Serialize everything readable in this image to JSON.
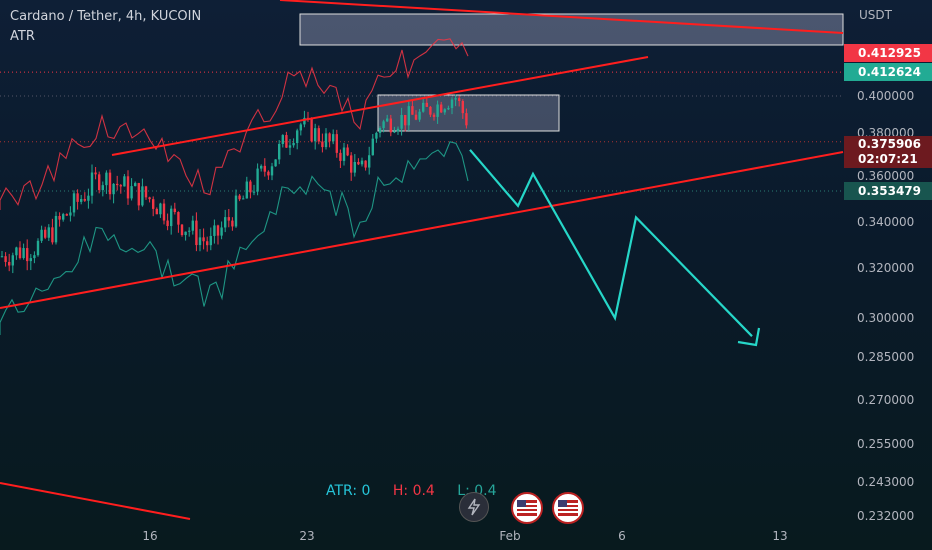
{
  "header": {
    "title": "Cardano / Tether, 4h, KUCOIN",
    "subtitle": "ATR"
  },
  "yaxis": {
    "unit": "USDT"
  },
  "badges": {
    "price_a": "0.412925",
    "price_b": "0.412624",
    "price_c": "0.375906",
    "timer": "02:07:21",
    "price_d": "0.353479"
  },
  "legend": {
    "atr": "ATR: 0",
    "high": "H: 0.4",
    "low": "L: 0.4"
  },
  "icons": [
    "lightning-icon",
    "us-flag-icon",
    "us-flag-icon"
  ],
  "colors": {
    "bull": "#22ab94",
    "bear": "#f23645",
    "trend": "#ff1e1e",
    "projection": "#26d7c8"
  },
  "chart_data": {
    "type": "candlestick",
    "ylim": [
      0.232,
      0.432
    ],
    "yticks": [
      0.4,
      0.38,
      0.36,
      0.34,
      0.32,
      0.3,
      0.285,
      0.27,
      0.255,
      0.243,
      0.232
    ],
    "ytick_labels": [
      "0.400000",
      "0.380000",
      "0.360000",
      "0.340000",
      "0.320000",
      "0.300000",
      "0.285000",
      "0.270000",
      "0.255000",
      "0.243000",
      "0.232000"
    ],
    "xticks": [
      "16",
      "23",
      "Feb",
      "6",
      "13"
    ],
    "price_levels": [
      0.412925,
      0.412624,
      0.375906,
      0.353479
    ],
    "projection_path": [
      0.3759,
      0.347,
      0.361,
      0.3,
      0.342,
      0.293
    ]
  }
}
